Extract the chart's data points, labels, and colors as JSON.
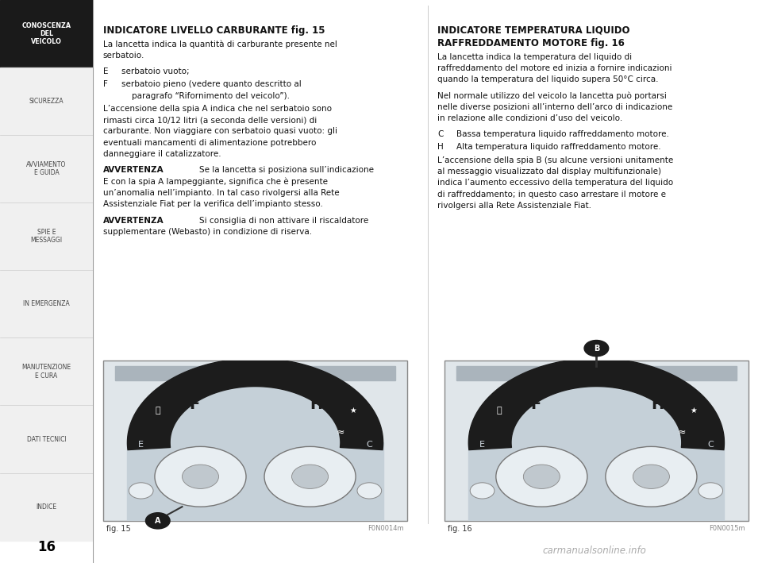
{
  "page_num": "16",
  "bg_color": "#ffffff",
  "sidebar_bg": "#f0f0f0",
  "sidebar_active_bg": "#1a1a1a",
  "sidebar_active_text": "#ffffff",
  "sidebar_text_color": "#444444",
  "sidebar_items": [
    {
      "label": "CONOSCENZA\nDEL\nVEICOLO",
      "active": true
    },
    {
      "label": "SICUREZZA",
      "active": false
    },
    {
      "label": "AVVIAMENTO\nE GUIDA",
      "active": false
    },
    {
      "label": "SPIE E\nMESSAGGI",
      "active": false
    },
    {
      "label": "IN EMERGENZA",
      "active": false
    },
    {
      "label": "MANUTENZIONE\nE CURA",
      "active": false
    },
    {
      "label": "DATI TECNICI",
      "active": false
    },
    {
      "label": "INDICE",
      "active": false
    }
  ],
  "left_col_title": "INDICATORE LIVELLO CARBURANTE fig. 15",
  "left_col_body": [
    {
      "type": "para",
      "text": "La lancetta indica la quantità di carburante presente nel\nserbatoio."
    },
    {
      "type": "item",
      "label": "E",
      "text": "serbatoio vuoto;"
    },
    {
      "type": "item",
      "label": "F",
      "text": "serbatoio pieno (vedere quanto descritto al\n    paragrafo “Rifornimento del veicolo”)."
    },
    {
      "type": "para",
      "text": "L’accensione della spia A indica che nel serbatoio sono\nrimasti circa 10/12 litri (a seconda delle versioni) di\ncarburante. Non viaggiare con serbatoio quasi vuoto: gli\neventuali mancamenti di alimentazione potrebbero\ndanneggiare il catalizzatore."
    },
    {
      "type": "warn",
      "bold": "AVVERTENZA",
      "text": " Se la lancetta si posiziona sull’indicazione\nE con la spia A lampeggiante, significa che è presente\nun’anomalia nell’impianto. In tal caso rivolgersi alla Rete\nAssistenziale Fiat per la verifica dell’impianto stesso."
    },
    {
      "type": "warn",
      "bold": "AVVERTENZA",
      "text": " Si consiglia di non attivare il riscaldatore\nsupplementare (Webasto) in condizione di riserva."
    }
  ],
  "right_col_title1": "INDICATORE TEMPERATURA LIQUIDO",
  "right_col_title2": "RAFFREDDAMENTO MOTORE fig. 16",
  "right_col_body": [
    {
      "type": "para",
      "text": "La lancetta indica la temperatura del liquido di\nraffreddamento del motore ed inizia a fornire indicazioni\nquando la temperatura del liquido supera 50°C circa."
    },
    {
      "type": "para",
      "text": "Nel normale utilizzo del veicolo la lancetta può portarsi\nnelle diverse posizioni all’interno dell’arco di indicazione\nin relazione alle condizioni d’uso del veicolo."
    },
    {
      "type": "item",
      "label": "C",
      "text": "Bassa temperatura liquido raffreddamento motore."
    },
    {
      "type": "item",
      "label": "H",
      "text": "Alta temperatura liquido raffreddamento motore."
    },
    {
      "type": "para",
      "text": "L’accensione della spia B (su alcune versioni unitamente\nal messaggio visualizzato dal display multifunzionale)\nindica l’aumento eccessivo della temperatura del liquido\ndi raffreddamento; in questo caso arrestare il motore e\nrivolgersi alla Rete Assistenziale Fiat."
    }
  ],
  "fig15_label": "fig. 15",
  "fig15_code": "F0N0014m",
  "fig16_label": "fig. 16",
  "fig16_code": "F0N0015m",
  "footer_url": "carmanualsonline.info",
  "divider_color": "#cccccc",
  "text_color": "#111111"
}
